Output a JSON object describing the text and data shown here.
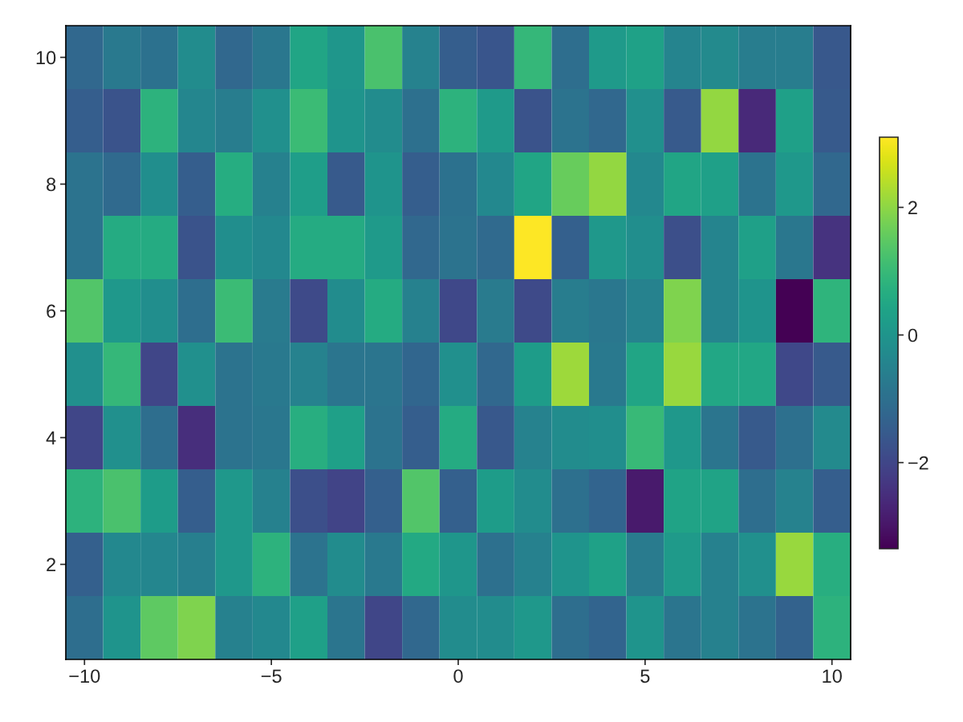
{
  "chart_data": {
    "type": "heatmap",
    "x": [
      -10,
      -9,
      -8,
      -7,
      -6,
      -5,
      -4,
      -3,
      -2,
      -1,
      0,
      1,
      2,
      3,
      4,
      5,
      6,
      7,
      8,
      9,
      10
    ],
    "y": [
      10,
      9,
      8,
      7,
      6,
      5,
      4,
      3,
      2,
      1
    ],
    "cells": [
      [
        -1.2,
        -0.75,
        -0.95,
        -0.25,
        -1.2,
        -0.8,
        0.45,
        0.05,
        1.25,
        -0.5,
        -1.45,
        -1.65,
        0.95,
        -1.05,
        0.15,
        0.35,
        -0.45,
        -0.3,
        -0.65,
        -0.65,
        -1.6
      ],
      [
        -1.45,
        -1.7,
        0.8,
        -0.4,
        -0.65,
        -0.15,
        1.05,
        0,
        -0.25,
        -1.0,
        0.8,
        0.15,
        -1.7,
        -0.9,
        -1.2,
        -0.15,
        -1.55,
        2.05,
        -2.6,
        0.3,
        -1.55
      ],
      [
        -0.9,
        -1.15,
        -0.2,
        -1.45,
        0.65,
        -0.55,
        0.25,
        -1.55,
        0,
        -1.45,
        -0.95,
        -0.35,
        0.45,
        1.6,
        2.05,
        -0.35,
        0.45,
        0.3,
        -0.9,
        0.1,
        -1.2
      ],
      [
        -0.9,
        0.6,
        0.6,
        -1.7,
        -0.2,
        -0.35,
        0.6,
        0.6,
        0.15,
        -1.2,
        -0.9,
        -1.15,
        3.1,
        -1.4,
        0.1,
        -0.2,
        -1.8,
        -0.45,
        0.3,
        -0.8,
        -2.4
      ],
      [
        1.35,
        0.1,
        -0.2,
        -1.05,
        1.05,
        -0.7,
        -1.9,
        -0.25,
        0.6,
        -0.55,
        -1.95,
        -0.7,
        -1.9,
        -0.65,
        -0.8,
        -0.5,
        1.85,
        -0.45,
        0,
        -3.35,
        0.85
      ],
      [
        -0.15,
        0.95,
        -2.0,
        -0.15,
        -0.9,
        -0.75,
        -0.5,
        -0.85,
        -0.85,
        -1.25,
        -0.15,
        -1.2,
        0.2,
        2.15,
        -0.75,
        0.45,
        2.1,
        0.5,
        0.5,
        -1.95,
        -1.55
      ],
      [
        -2.0,
        -0.15,
        -1.05,
        -2.5,
        -0.9,
        -0.8,
        0.7,
        0.3,
        -0.9,
        -1.45,
        0.6,
        -1.6,
        -0.5,
        -0.25,
        -0.2,
        1.0,
        0.1,
        -0.85,
        -1.55,
        -1.0,
        -0.3
      ],
      [
        0.8,
        1.25,
        0.2,
        -1.45,
        0.1,
        -0.55,
        -1.8,
        -2.05,
        -1.4,
        1.35,
        -1.4,
        0.2,
        -0.25,
        -1.0,
        -1.3,
        -2.9,
        0.4,
        0.4,
        -1.05,
        -0.5,
        -1.45
      ],
      [
        -1.4,
        -0.35,
        -0.4,
        -0.6,
        0.1,
        0.8,
        -0.9,
        -0.25,
        -0.75,
        0.55,
        0.05,
        -1.0,
        -0.55,
        0,
        0.35,
        -0.7,
        0.15,
        -0.55,
        -0.15,
        2.1,
        0.7
      ],
      [
        -1.05,
        0,
        1.5,
        1.85,
        -0.55,
        -0.35,
        0.3,
        -0.85,
        -2.0,
        -1.2,
        -0.25,
        -0.25,
        0.1,
        -1.05,
        -1.3,
        0,
        -0.85,
        -0.55,
        -0.9,
        -1.35,
        0.8
      ]
    ],
    "xlim": [
      -10.5,
      10.5
    ],
    "xticks": [
      {
        "value": -10,
        "label": "−10"
      },
      {
        "value": -5,
        "label": "−5"
      },
      0,
      5,
      10
    ],
    "ylim": [
      0.5,
      10.5
    ],
    "yticks": [
      2,
      4,
      6,
      8,
      10
    ],
    "clim": [
      -3.35,
      3.1
    ],
    "cticks": [
      {
        "value": -2,
        "label": "−2"
      },
      0,
      2
    ],
    "grid": false
  }
}
